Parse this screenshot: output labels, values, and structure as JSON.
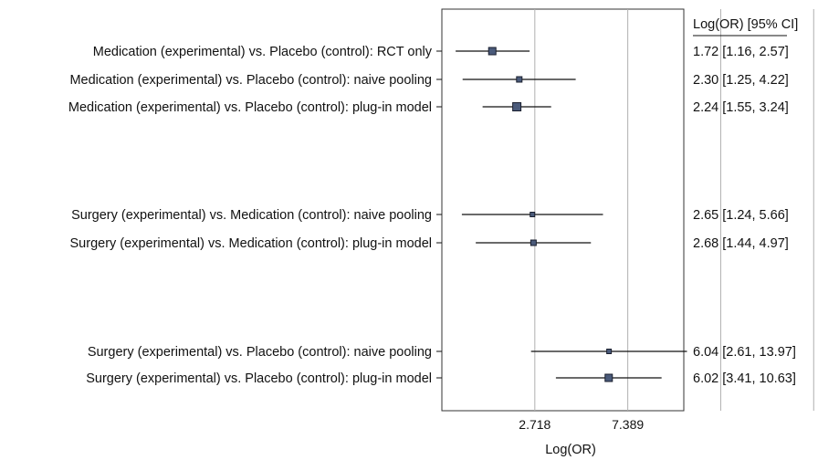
{
  "chart_data": {
    "type": "forest",
    "xlabel": "Log(OR)",
    "estimate_header": "Log(OR) [95% CI]",
    "x_scale": "log",
    "x_ticks": [
      2.718,
      7.389
    ],
    "x_tick_labels": [
      "2.718",
      "7.389"
    ],
    "xlim": [
      1.0,
      13.5
    ],
    "grid": true,
    "rows": [
      {
        "label": "Medication (experimental) vs. Placebo (control): RCT only",
        "estimate": 1.72,
        "lower": 1.16,
        "upper": 2.57,
        "text": "1.72 [1.16, 2.57]",
        "weight": 2
      },
      {
        "label": "Medication (experimental) vs. Placebo (control): naive pooling",
        "estimate": 2.3,
        "lower": 1.25,
        "upper": 4.22,
        "text": "2.30 [1.25, 4.22]",
        "weight": 1
      },
      {
        "label": "Medication (experimental) vs. Placebo (control): plug-in model",
        "estimate": 2.24,
        "lower": 1.55,
        "upper": 3.24,
        "text": "2.24 [1.55, 3.24]",
        "weight": 3
      },
      {
        "label": "Surgery (experimental) vs. Medication (control): naive pooling",
        "estimate": 2.65,
        "lower": 1.24,
        "upper": 5.66,
        "text": "2.65 [1.24, 5.66]",
        "weight": 0
      },
      {
        "label": "Surgery (experimental) vs. Medication (control): plug-in model",
        "estimate": 2.68,
        "lower": 1.44,
        "upper": 4.97,
        "text": "2.68 [1.44, 4.97]",
        "weight": 1
      },
      {
        "label": "Surgery (experimental) vs. Placebo (control): naive pooling",
        "estimate": 6.04,
        "lower": 2.61,
        "upper": 13.97,
        "text": "6.04 [2.61, 13.97]",
        "weight": 0
      },
      {
        "label": "Surgery (experimental) vs. Placebo (control): plug-in model",
        "estimate": 6.02,
        "lower": 3.41,
        "upper": 10.63,
        "text": "6.02 [3.41, 10.63]",
        "weight": 2
      }
    ],
    "colors": {
      "marker_fill": "#4a5a7a",
      "marker_stroke": "#1a1f2e",
      "line": "#111111",
      "grid": "#b0b0b0",
      "frame": "#333333"
    }
  }
}
